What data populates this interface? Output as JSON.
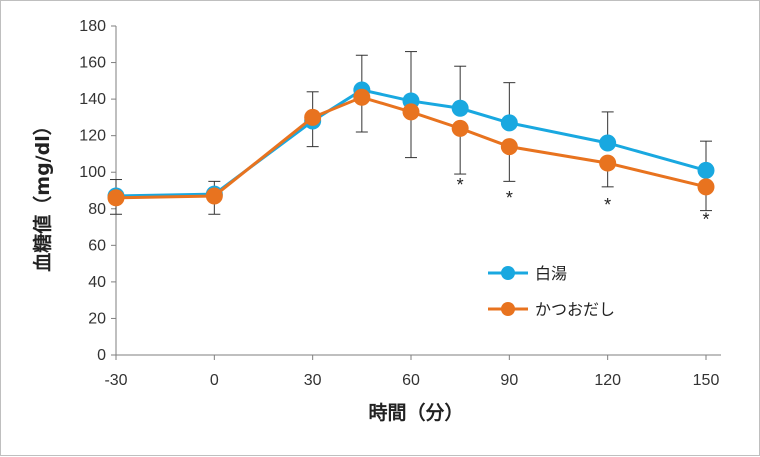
{
  "chart_data": {
    "type": "line",
    "xlabel": "時間（分）",
    "ylabel": "血糖値（mg/dl）",
    "x": [
      -30,
      0,
      30,
      45,
      60,
      75,
      90,
      120,
      150
    ],
    "x_ticks": [
      -30,
      0,
      30,
      60,
      90,
      120,
      150
    ],
    "xlim": [
      -30,
      150
    ],
    "ylim": [
      0,
      180
    ],
    "y_ticks": [
      0,
      20,
      40,
      60,
      80,
      100,
      120,
      140,
      160,
      180
    ],
    "grid": false,
    "legend_position": "bottom-right",
    "series": [
      {
        "name": "白湯",
        "color": "#19a8e0",
        "values": [
          87,
          88,
          128,
          145,
          139,
          135,
          127,
          116,
          101
        ],
        "error_upper": [
          96,
          95,
          144,
          164,
          166,
          158,
          149,
          133,
          117
        ]
      },
      {
        "name": "かつおだし",
        "color": "#e8731f",
        "values": [
          86,
          87,
          130,
          141,
          133,
          124,
          114,
          105,
          92
        ],
        "error_lower": [
          77,
          77,
          114,
          122,
          108,
          99,
          95,
          92,
          79
        ]
      }
    ],
    "annotations": [
      {
        "text": "*",
        "x": 75,
        "y": 93
      },
      {
        "text": "*",
        "x": 90,
        "y": 86
      },
      {
        "text": "*",
        "x": 120,
        "y": 82
      },
      {
        "text": "*",
        "x": 150,
        "y": 74
      }
    ]
  }
}
